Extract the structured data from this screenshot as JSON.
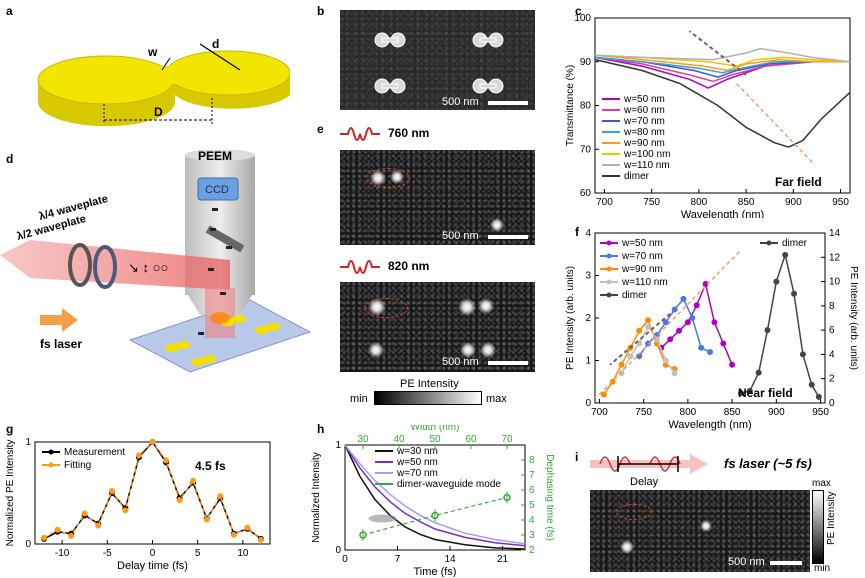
{
  "panels": {
    "a": {
      "label": "a",
      "w_label": "w",
      "d_label": "d",
      "D_label": "D"
    },
    "b": {
      "label": "b",
      "scale": "500 nm"
    },
    "c": {
      "label": "c",
      "corner": "Far field"
    },
    "d": {
      "label": "d",
      "peem": "PEEM",
      "ccd": "CCD",
      "qwp": "λ/4 waveplate",
      "hwp": "λ/2 waveplate",
      "laser": "fs laser"
    },
    "e": {
      "label": "e",
      "wl1": "760 nm",
      "wl2": "820 nm",
      "scale1": "500 nm",
      "scale2": "500 nm",
      "cbar_title": "PE Intensity",
      "cbar_min": "min",
      "cbar_max": "max"
    },
    "f": {
      "label": "f",
      "corner": "Near field"
    },
    "g": {
      "label": "g",
      "annotation": "4.5 fs"
    },
    "h": {
      "label": "h"
    },
    "i": {
      "label": "i",
      "title": "fs laser (~5 fs)",
      "delay": "Delay",
      "scale": "500 nm",
      "cbar_title": "PE Intensity",
      "cbar_max": "max",
      "cbar_min": "min"
    }
  },
  "chart_data": [
    {
      "id": "c",
      "type": "line",
      "xlabel": "Wavelength (nm)",
      "ylabel": "Transmittance (%)",
      "xlim": [
        690,
        960
      ],
      "ylim": [
        60,
        100
      ],
      "xticks": [
        "700",
        "750",
        "800",
        "850",
        "900",
        "950"
      ],
      "yticks": [
        "60",
        "70",
        "80",
        "90",
        "100"
      ],
      "series": [
        {
          "name": "w=50 nm",
          "color": "#b000c8",
          "x": [
            690,
            740,
            790,
            810,
            830,
            870,
            920,
            960
          ],
          "y": [
            91,
            89,
            86,
            84,
            86,
            89,
            90,
            90
          ]
        },
        {
          "name": "w=60 nm",
          "color": "#e0409a",
          "x": [
            690,
            740,
            790,
            815,
            835,
            870,
            920,
            960
          ],
          "y": [
            91,
            89.5,
            87,
            85.5,
            87,
            89,
            90,
            90
          ]
        },
        {
          "name": "w=70 nm",
          "color": "#3a58d8",
          "x": [
            690,
            740,
            795,
            820,
            840,
            875,
            920,
            960
          ],
          "y": [
            91,
            90,
            88,
            86.5,
            88,
            89.5,
            90,
            90
          ]
        },
        {
          "name": "w=80 nm",
          "color": "#2fa7c7",
          "x": [
            690,
            740,
            800,
            825,
            845,
            880,
            920,
            960
          ],
          "y": [
            91,
            90,
            88.5,
            87.5,
            88.5,
            90,
            90,
            90
          ]
        },
        {
          "name": "w=90 nm",
          "color": "#ff9a1a",
          "x": [
            690,
            740,
            805,
            830,
            850,
            885,
            920,
            960
          ],
          "y": [
            91.5,
            90.5,
            89,
            88,
            89.5,
            90.5,
            90,
            90
          ]
        },
        {
          "name": "w=100 nm",
          "color": "#f2c200",
          "x": [
            690,
            740,
            810,
            840,
            860,
            890,
            920,
            960
          ],
          "y": [
            91.5,
            91,
            90,
            89,
            90.5,
            91,
            90.5,
            90
          ]
        },
        {
          "name": "w=110 nm",
          "color": "#b0b0b0",
          "x": [
            690,
            740,
            815,
            850,
            865,
            895,
            920,
            960
          ],
          "y": [
            91.5,
            91,
            90.5,
            92,
            93,
            92,
            91,
            90
          ]
        },
        {
          "name": "dimer",
          "color": "#333333",
          "x": [
            690,
            740,
            780,
            820,
            850,
            880,
            895,
            910,
            930,
            960
          ],
          "y": [
            90.5,
            88,
            85,
            80,
            75,
            71.5,
            70.5,
            72,
            77,
            83
          ]
        }
      ]
    },
    {
      "id": "f",
      "type": "line",
      "xlabel": "Wavelength (nm)",
      "ylabel": "PE Intensity (arb. units)",
      "y2label": "PE Intensity (arb. units)",
      "xlim": [
        695,
        955
      ],
      "ylim": [
        0,
        4
      ],
      "y2lim": [
        0,
        14
      ],
      "xticks": [
        "700",
        "750",
        "800",
        "850",
        "900",
        "950"
      ],
      "yticks": [
        "0",
        "1",
        "2",
        "3",
        "4"
      ],
      "y2ticks": [
        "0",
        "2",
        "4",
        "6",
        "8",
        "10",
        "12",
        "14"
      ],
      "series": [
        {
          "name": "w=50 nm",
          "color": "#b000c8",
          "axis": "left",
          "x": [
            770,
            780,
            790,
            800,
            810,
            820,
            830,
            840,
            850
          ],
          "y": [
            1.3,
            1.5,
            1.7,
            1.9,
            2.3,
            2.8,
            1.9,
            1.4,
            0.9
          ]
        },
        {
          "name": "w=70 nm",
          "color": "#4a78e8",
          "axis": "left",
          "x": [
            745,
            755,
            765,
            775,
            785,
            795,
            805,
            815,
            825
          ],
          "y": [
            1.1,
            1.4,
            1.6,
            1.9,
            2.2,
            2.45,
            2.0,
            1.3,
            1.2
          ]
        },
        {
          "name": "w=90 nm",
          "color": "#ff8a00",
          "axis": "left",
          "x": [
            705,
            715,
            725,
            735,
            745,
            755,
            765,
            775,
            785
          ],
          "y": [
            0.2,
            0.5,
            0.9,
            1.3,
            1.7,
            1.95,
            1.4,
            0.9,
            0.8
          ]
        },
        {
          "name": "w=110 nm",
          "color": "#c0c0c0",
          "axis": "left",
          "x": [
            725,
            735,
            745,
            755,
            765,
            775,
            785
          ],
          "y": [
            0.7,
            1.1,
            1.4,
            1.8,
            1.5,
            1.0,
            0.7
          ]
        },
        {
          "name": "dimer",
          "color": "#444444",
          "axis": "right",
          "x": [
            860,
            870,
            880,
            890,
            900,
            910,
            920,
            930,
            940,
            948
          ],
          "y": [
            0.8,
            1.0,
            2.5,
            6,
            10,
            12.2,
            9,
            4,
            1.5,
            0.5
          ]
        }
      ]
    },
    {
      "id": "g",
      "type": "line",
      "xlabel": "Delay time (fs)",
      "ylabel": "Normalized PE Intensity",
      "xlim": [
        -13,
        13
      ],
      "ylim": [
        0,
        1
      ],
      "xticks": [
        "-10",
        "-5",
        "0",
        "5",
        "10"
      ],
      "yticks": [
        "0",
        "1"
      ],
      "series": [
        {
          "name": "Measurement",
          "color": "#000000",
          "x": [
            -12,
            -10.5,
            -9,
            -7.5,
            -6,
            -4.5,
            -3,
            -1.5,
            0,
            1.5,
            3,
            4.5,
            6,
            7.5,
            9,
            10.5,
            12
          ],
          "y": [
            0.05,
            0.12,
            0.1,
            0.28,
            0.2,
            0.5,
            0.35,
            0.85,
            1.0,
            0.8,
            0.45,
            0.6,
            0.25,
            0.45,
            0.1,
            0.15,
            0.05
          ]
        },
        {
          "name": "Fitting",
          "color": "#ff9a1a",
          "x": [
            -12,
            -10.5,
            -9,
            -7.5,
            -6,
            -4.5,
            -3,
            -1.5,
            0,
            1.5,
            3,
            4.5,
            6,
            7.5,
            9,
            10.5,
            12
          ],
          "y": [
            0.06,
            0.14,
            0.08,
            0.3,
            0.18,
            0.52,
            0.33,
            0.87,
            1.0,
            0.82,
            0.43,
            0.62,
            0.24,
            0.47,
            0.09,
            0.16,
            0.04
          ]
        }
      ]
    },
    {
      "id": "h",
      "type": "line",
      "xlabel": "Time (fs)",
      "ylabel": "Normalized Intensity",
      "x2label": "Width (nm)",
      "y2label": "Dephasing time (fs)",
      "xlim": [
        0,
        24
      ],
      "ylim": [
        0,
        1
      ],
      "x2lim": [
        25,
        75
      ],
      "y2lim": [
        2,
        9
      ],
      "xticks": [
        "0",
        "7",
        "14",
        "21"
      ],
      "yticks": [
        "0",
        "1"
      ],
      "x2ticks": [
        "30",
        "40",
        "50",
        "60",
        "70"
      ],
      "y2ticks": [
        "2",
        "3",
        "4",
        "5",
        "6",
        "7",
        "8"
      ],
      "series": [
        {
          "name": "w=30 nm",
          "color": "#111111",
          "x": [
            0,
            2,
            4,
            6,
            8,
            10,
            12,
            16,
            20,
            24
          ],
          "y": [
            1,
            0.7,
            0.48,
            0.33,
            0.22,
            0.15,
            0.1,
            0.05,
            0.02,
            0.01
          ]
        },
        {
          "name": "w=50 nm",
          "color": "#7a2cc8",
          "x": [
            0,
            2,
            4,
            6,
            8,
            10,
            12,
            16,
            20,
            24
          ],
          "y": [
            1,
            0.78,
            0.6,
            0.46,
            0.35,
            0.27,
            0.2,
            0.12,
            0.07,
            0.04
          ]
        },
        {
          "name": "w=70 nm",
          "color": "#a0a0f0",
          "x": [
            0,
            2,
            4,
            6,
            8,
            10,
            12,
            16,
            20,
            24
          ],
          "y": [
            1,
            0.82,
            0.66,
            0.53,
            0.42,
            0.33,
            0.26,
            0.16,
            0.1,
            0.06
          ]
        },
        {
          "name": "dimer-waveguide mode",
          "color": "#33aa33",
          "axis": "right",
          "x": [
            30,
            50,
            70
          ],
          "y": [
            3.0,
            4.3,
            5.5
          ]
        }
      ]
    }
  ]
}
